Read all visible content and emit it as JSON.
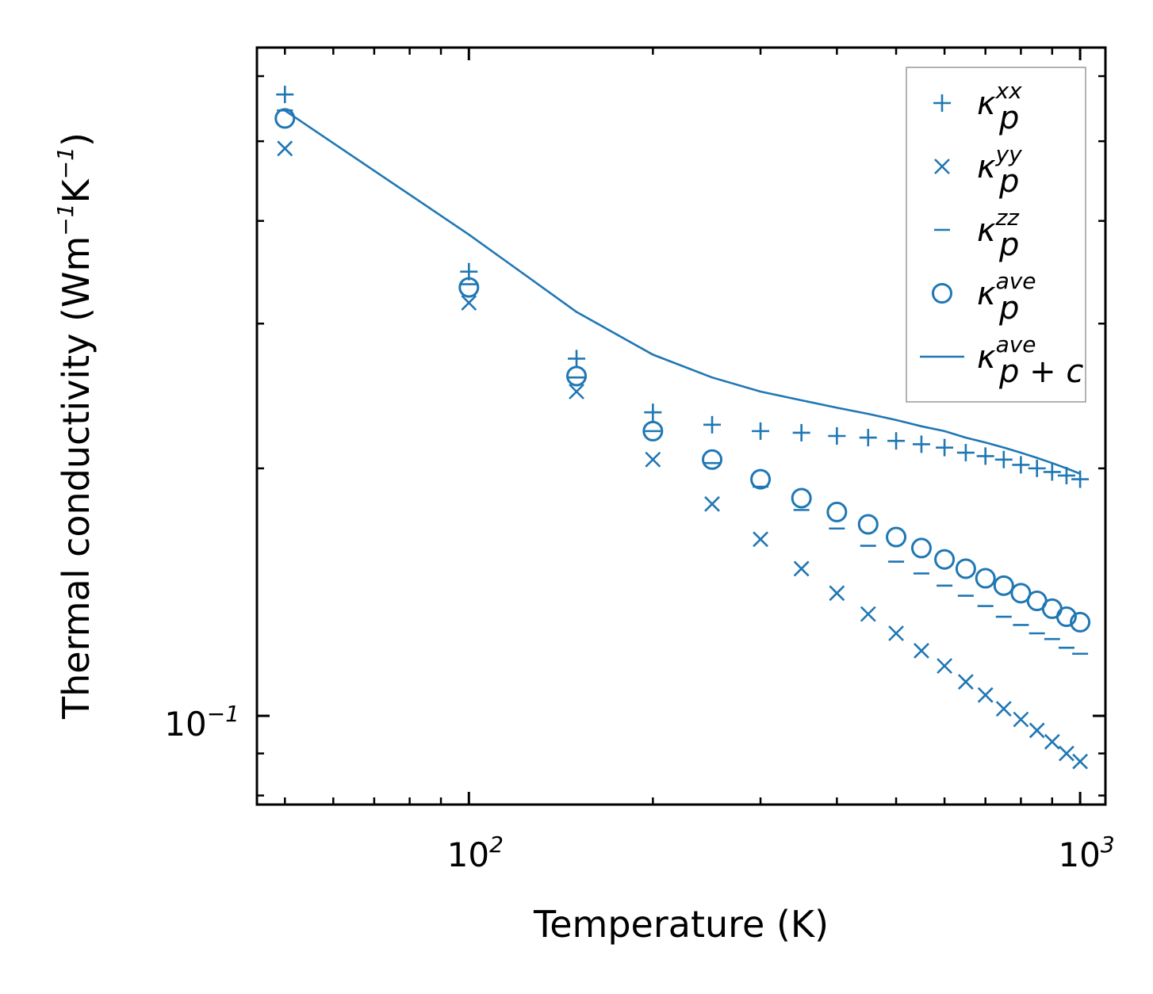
{
  "chart_data": {
    "type": "scatter",
    "title": "",
    "xlabel": "Temperature (K)",
    "ylabel": "Thermal conductivity (Wm",
    "ylabel_sup1": "−1",
    "ylabel_mid": "K",
    "ylabel_sup2": "−1",
    "ylabel_end": ")",
    "xscale": "log",
    "yscale": "log",
    "xlim": [
      45,
      1100
    ],
    "ylim": [
      0.078,
      0.65
    ],
    "x_ticks": [
      {
        "base": "10",
        "exp": "2"
      },
      {
        "base": "10",
        "exp": "3"
      }
    ],
    "y_ticks": [
      {
        "base": "10",
        "exp": "−1"
      }
    ],
    "color": "#1f77b4",
    "legend_position": "top-right",
    "x": [
      50,
      100,
      150,
      200,
      250,
      300,
      350,
      400,
      450,
      500,
      550,
      600,
      650,
      700,
      750,
      800,
      850,
      900,
      950,
      1000
    ],
    "series": [
      {
        "name": "κ_p^xx",
        "label_main": "κ",
        "label_sub": "p",
        "label_sup": "xx",
        "marker": "plus",
        "values": [
          0.57,
          0.347,
          0.272,
          0.234,
          0.226,
          0.222,
          0.221,
          0.219,
          0.218,
          0.216,
          0.214,
          0.212,
          0.209,
          0.207,
          0.205,
          0.202,
          0.2,
          0.198,
          0.196,
          0.194
        ]
      },
      {
        "name": "κ_p^yy",
        "label_main": "κ",
        "label_sub": "p",
        "label_sup": "yy",
        "marker": "x",
        "values": [
          0.49,
          0.318,
          0.248,
          0.205,
          0.181,
          0.164,
          0.151,
          0.141,
          0.133,
          0.126,
          0.12,
          0.115,
          0.11,
          0.106,
          0.102,
          0.099,
          0.096,
          0.093,
          0.09,
          0.088
        ]
      },
      {
        "name": "κ_p^zz",
        "label_main": "κ",
        "label_sub": "p",
        "label_sup": "zz",
        "marker": "dash",
        "values": [
          0.545,
          0.335,
          0.258,
          0.222,
          0.203,
          0.19,
          0.178,
          0.169,
          0.161,
          0.154,
          0.149,
          0.144,
          0.14,
          0.136,
          0.132,
          0.129,
          0.126,
          0.124,
          0.121,
          0.119
        ]
      },
      {
        "name": "κ_p^ave",
        "label_main": "κ",
        "label_sub": "p",
        "label_sup": "ave",
        "marker": "circle",
        "values": [
          0.533,
          0.332,
          0.259,
          0.222,
          0.205,
          0.194,
          0.184,
          0.177,
          0.171,
          0.165,
          0.16,
          0.155,
          0.151,
          0.147,
          0.144,
          0.141,
          0.138,
          0.135,
          0.132,
          0.13
        ]
      },
      {
        "name": "κ_p+c^ave",
        "label_main": "κ",
        "label_sub": "p + c",
        "label_sup": "ave",
        "marker": "line",
        "values": [
          0.545,
          0.385,
          0.31,
          0.275,
          0.258,
          0.248,
          0.242,
          0.237,
          0.233,
          0.229,
          0.225,
          0.222,
          0.218,
          0.215,
          0.212,
          0.209,
          0.206,
          0.203,
          0.2,
          0.197
        ]
      }
    ]
  }
}
